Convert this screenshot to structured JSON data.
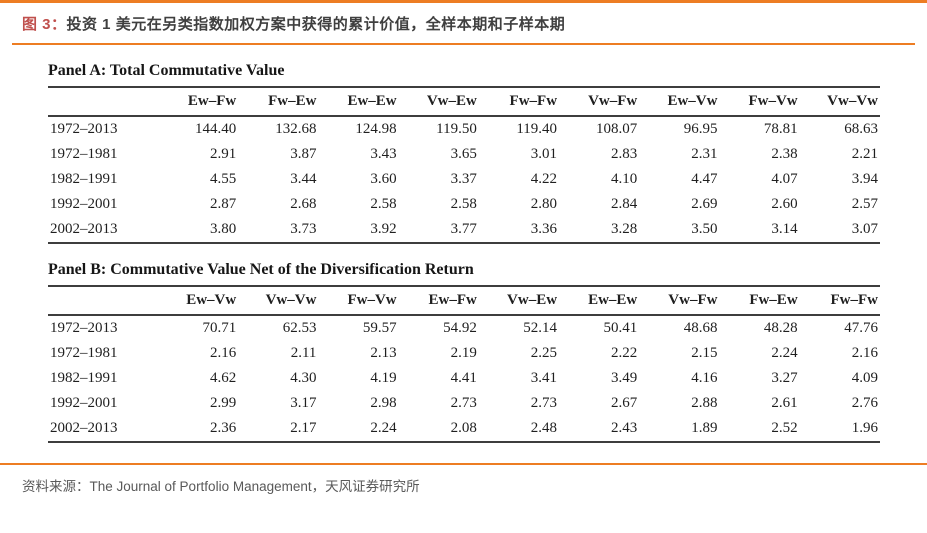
{
  "header": {
    "figure_label": "图 3：",
    "title": "投资 1 美元在另类指数加权方案中获得的累计价值，全样本期和子样本期"
  },
  "colors": {
    "accent_orange": "#ED7D23",
    "figure_label_red": "#C0504D",
    "title_gray": "#3F3F3F",
    "table_text": "#1F1F1F",
    "footer_gray": "#595959"
  },
  "panels": [
    {
      "title": "Panel A: Total Commutative Value",
      "columns": [
        "Ew–Fw",
        "Fw–Ew",
        "Ew–Ew",
        "Vw–Ew",
        "Fw–Fw",
        "Vw–Fw",
        "Ew–Vw",
        "Fw–Vw",
        "Vw–Vw"
      ],
      "rows": [
        {
          "label": "1972–2013",
          "values": [
            "144.40",
            "132.68",
            "124.98",
            "119.50",
            "119.40",
            "108.07",
            "96.95",
            "78.81",
            "68.63"
          ]
        },
        {
          "label": "1972–1981",
          "values": [
            "2.91",
            "3.87",
            "3.43",
            "3.65",
            "3.01",
            "2.83",
            "2.31",
            "2.38",
            "2.21"
          ]
        },
        {
          "label": "1982–1991",
          "values": [
            "4.55",
            "3.44",
            "3.60",
            "3.37",
            "4.22",
            "4.10",
            "4.47",
            "4.07",
            "3.94"
          ]
        },
        {
          "label": "1992–2001",
          "values": [
            "2.87",
            "2.68",
            "2.58",
            "2.58",
            "2.80",
            "2.84",
            "2.69",
            "2.60",
            "2.57"
          ]
        },
        {
          "label": "2002–2013",
          "values": [
            "3.80",
            "3.73",
            "3.92",
            "3.77",
            "3.36",
            "3.28",
            "3.50",
            "3.14",
            "3.07"
          ]
        }
      ]
    },
    {
      "title": "Panel B: Commutative Value Net of the Diversification Return",
      "columns": [
        "Ew–Vw",
        "Vw–Vw",
        "Fw–Vw",
        "Ew–Fw",
        "Vw–Ew",
        "Ew–Ew",
        "Vw–Fw",
        "Fw–Ew",
        "Fw–Fw"
      ],
      "rows": [
        {
          "label": "1972–2013",
          "values": [
            "70.71",
            "62.53",
            "59.57",
            "54.92",
            "52.14",
            "50.41",
            "48.68",
            "48.28",
            "47.76"
          ]
        },
        {
          "label": "1972–1981",
          "values": [
            "2.16",
            "2.11",
            "2.13",
            "2.19",
            "2.25",
            "2.22",
            "2.15",
            "2.24",
            "2.16"
          ]
        },
        {
          "label": "1982–1991",
          "values": [
            "4.62",
            "4.30",
            "4.19",
            "4.41",
            "3.41",
            "3.49",
            "4.16",
            "3.27",
            "4.09"
          ]
        },
        {
          "label": "1992–2001",
          "values": [
            "2.99",
            "3.17",
            "2.98",
            "2.73",
            "2.73",
            "2.67",
            "2.88",
            "2.61",
            "2.76"
          ]
        },
        {
          "label": "2002–2013",
          "values": [
            "2.36",
            "2.17",
            "2.24",
            "2.08",
            "2.48",
            "2.43",
            "1.89",
            "2.52",
            "1.96"
          ]
        }
      ]
    }
  ],
  "footer": {
    "source": "资料来源：The Journal of Portfolio Management，天风证券研究所"
  }
}
